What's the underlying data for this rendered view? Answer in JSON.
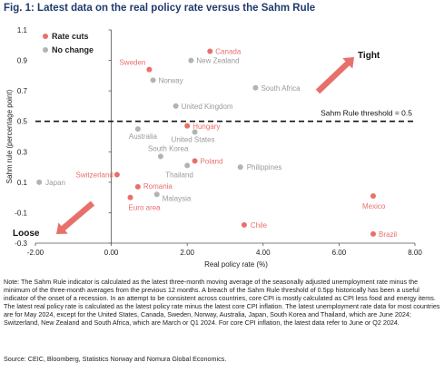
{
  "figure_title": "Fig. 1: Latest data on the real policy rate versus the Sahm Rule",
  "note": "Note: The Sahm Rule indicator is calculated as the latest three-month moving average of the seasonally adjusted unemployment rate minus the minimum of the three-month averages from the previous 12 months. A breach of the Sahm Rule threshold of 0.5pp historically has been a useful indicator of the onset of a recession. In an attempt to be consistent across countries, core CPI is mostly calculated as CPI less food and energy items. The latest real policy rate is calculated as the latest policy rate minus the latest core CPI inflation. The latest unemployment rate data for most countries are for May 2024, except for the United States, Canada, Sweden, Norway, Australia, Japan, South Korea and Thailand, which are June 2024; Switzerland, New Zealand and South Africa, which are March or Q1 2024. For core CPI inflation, the latest data refer to June or Q2 2024.",
  "source": "Source: CEIC, Bloomberg, Statistics Norway and Nomura Global Economics.",
  "colors": {
    "rate_cuts": "#e8706b",
    "no_change": "#b3b3b3",
    "arrow": "#e8706b"
  },
  "chart_data": {
    "type": "scatter",
    "xlabel": "Real policy rate (%)",
    "ylabel": "Sahm rule (percentage point)",
    "xlim": [
      -2.0,
      8.0
    ],
    "ylim": [
      -0.3,
      1.1
    ],
    "xticks": [
      -2,
      0,
      2,
      4,
      6,
      8
    ],
    "xtick_labels": [
      "-2.00",
      "0.00",
      "2.00",
      "4.00",
      "6.00",
      "8.00"
    ],
    "yticks": [
      -0.3,
      -0.1,
      0.1,
      0.3,
      0.5,
      0.7,
      0.9,
      1.1
    ],
    "ytick_labels": [
      "-0.3",
      "-0.1",
      "0.1",
      "0.3",
      "0.5",
      "0.7",
      "0.9",
      "1.1"
    ],
    "grid": false,
    "legend": "top-left",
    "threshold": {
      "y": 0.5,
      "label": "Sahm Rule threshold = 0.5"
    },
    "annotations": {
      "tight": "Tight",
      "loose": "Loose"
    },
    "series": [
      {
        "name": "Rate cuts",
        "points": [
          {
            "label": "Canada",
            "x": 2.6,
            "y": 0.96
          },
          {
            "label": "Sweden",
            "x": 1.0,
            "y": 0.84
          },
          {
            "label": "Hungary",
            "x": 2.0,
            "y": 0.47
          },
          {
            "label": "Poland",
            "x": 2.2,
            "y": 0.24
          },
          {
            "label": "Switzerland",
            "x": 0.15,
            "y": 0.15
          },
          {
            "label": "Romania",
            "x": 0.7,
            "y": 0.07
          },
          {
            "label": "Euro area",
            "x": 0.5,
            "y": 0.0
          },
          {
            "label": "Mexico",
            "x": 6.9,
            "y": 0.01
          },
          {
            "label": "Chile",
            "x": 3.5,
            "y": -0.18
          },
          {
            "label": "Brazil",
            "x": 6.9,
            "y": -0.24
          }
        ]
      },
      {
        "name": "No change",
        "points": [
          {
            "label": "New Zealand",
            "x": 2.1,
            "y": 0.9
          },
          {
            "label": "Norway",
            "x": 1.1,
            "y": 0.77
          },
          {
            "label": "South Africa",
            "x": 3.8,
            "y": 0.72
          },
          {
            "label": "United Kingdom",
            "x": 1.7,
            "y": 0.6
          },
          {
            "label": "Australia",
            "x": 0.7,
            "y": 0.45
          },
          {
            "label": "United States",
            "x": 2.2,
            "y": 0.43
          },
          {
            "label": "South Korea",
            "x": 1.3,
            "y": 0.27
          },
          {
            "label": "Thailand",
            "x": 2.0,
            "y": 0.21
          },
          {
            "label": "Philippines",
            "x": 3.4,
            "y": 0.2
          },
          {
            "label": "Japan",
            "x": -1.9,
            "y": 0.1
          },
          {
            "label": "Malaysia",
            "x": 1.2,
            "y": 0.02
          }
        ]
      }
    ]
  }
}
